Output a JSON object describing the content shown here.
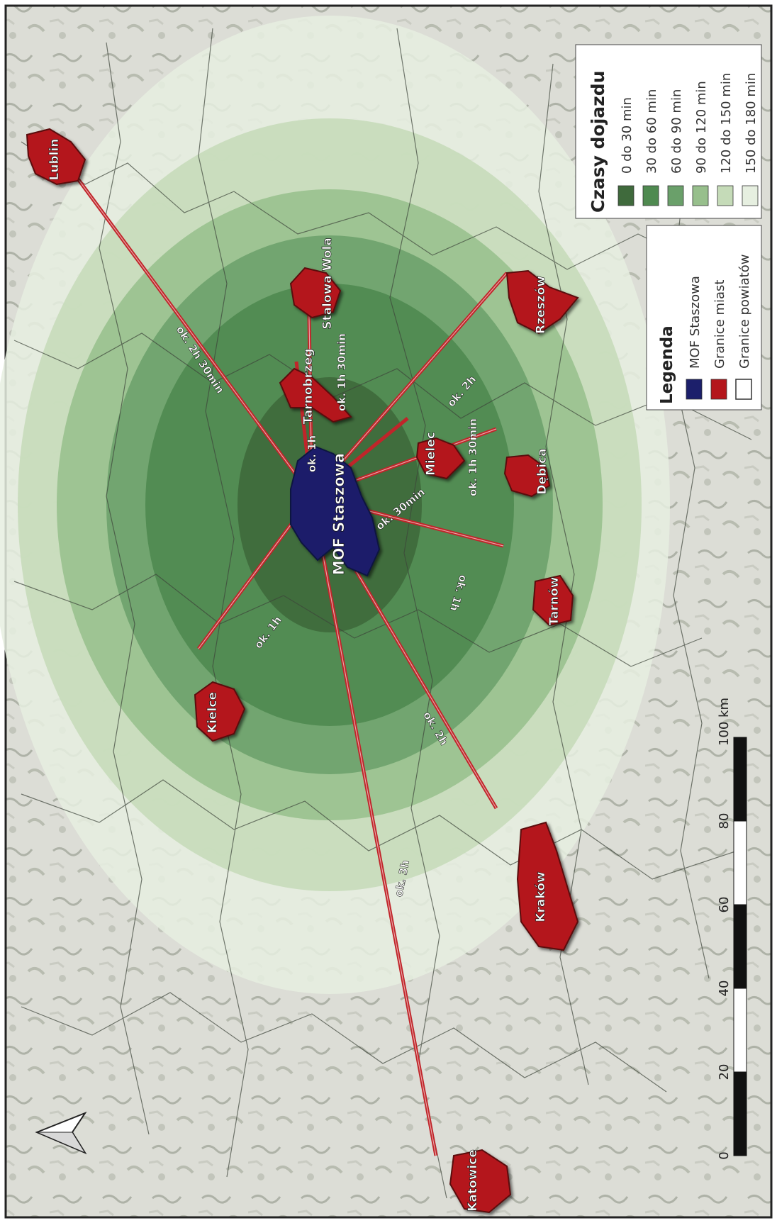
{
  "center": {
    "label": "MOF Staszowa"
  },
  "cities": [
    {
      "id": "lublin",
      "name": "Lublin",
      "time": "ok. 2h 30min"
    },
    {
      "id": "stalowa-wola",
      "name": "Stalowa Wola",
      "time": "ok. 1h 30min"
    },
    {
      "id": "tarnobrzeg",
      "name": "Tarnobrzeg",
      "time": "ok. 1h"
    },
    {
      "id": "rzeszow",
      "name": "Rzeszów",
      "time": "ok. 2h"
    },
    {
      "id": "mielec",
      "name": "Mielec",
      "time": "ok. 30min"
    },
    {
      "id": "debica",
      "name": "Dębica",
      "time": "ok. 1h 30min"
    },
    {
      "id": "tarnow",
      "name": "Tarnów",
      "time": "ok. 1h"
    },
    {
      "id": "kielce",
      "name": "Kielce",
      "time": "ok. 1h"
    },
    {
      "id": "krakow",
      "name": "Kraków",
      "time": "ok. 2h"
    },
    {
      "id": "katowice",
      "name": "Katowice",
      "time": "ok. 3h"
    }
  ],
  "legend_times": {
    "title": "Czasy dojazdu",
    "items": [
      {
        "label": "0 do 30 min",
        "color": "#3f6a3c"
      },
      {
        "label": "30 do 60 min",
        "color": "#4f8a50"
      },
      {
        "label": "60 do 90 min",
        "color": "#6aa06a"
      },
      {
        "label": "90 do 120 min",
        "color": "#97bf8c"
      },
      {
        "label": "120 do 150 min",
        "color": "#c5dbb8"
      },
      {
        "label": "150 do 180 min",
        "color": "#e6efe0"
      }
    ]
  },
  "legend_main": {
    "title": "Legenda",
    "items": [
      {
        "label": "MOF Staszowa",
        "color": "#1c1f6b"
      },
      {
        "label": "Granice miast",
        "color": "#b4161c"
      },
      {
        "label": "Granice powiatów",
        "color": "#ffffff"
      }
    ]
  },
  "scalebar": {
    "ticks": [
      "0",
      "20",
      "40",
      "60",
      "80",
      "100 km"
    ]
  },
  "colors": {
    "connection": "#c0252a",
    "city_fill": "#b4161c",
    "mof_fill": "#1c1f6b"
  }
}
